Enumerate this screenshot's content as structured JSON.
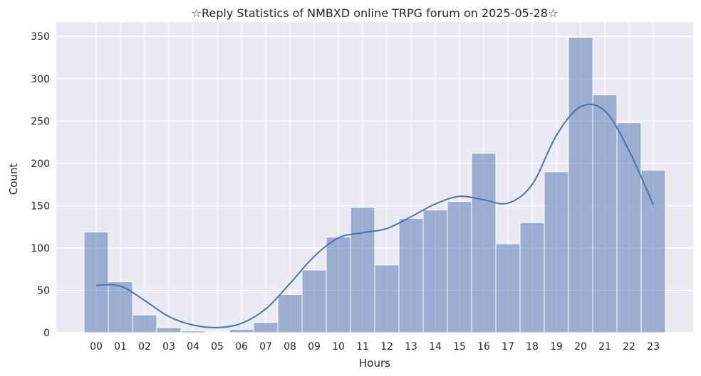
{
  "chart_data": {
    "type": "bar",
    "title": "☆Reply Statistics of NMBXD online TRPG forum on 2025-05-28☆",
    "xlabel": "Hours",
    "ylabel": "Count",
    "categories": [
      "00",
      "01",
      "02",
      "03",
      "04",
      "05",
      "06",
      "07",
      "08",
      "09",
      "10",
      "11",
      "12",
      "13",
      "14",
      "15",
      "16",
      "17",
      "18",
      "19",
      "20",
      "21",
      "22",
      "23"
    ],
    "values": [
      119,
      60,
      21,
      6,
      2,
      1,
      4,
      12,
      45,
      74,
      113,
      148,
      80,
      135,
      145,
      155,
      212,
      105,
      130,
      190,
      349,
      281,
      248,
      192
    ],
    "kde": {
      "x": [
        "00",
        "01",
        "02",
        "03",
        "04",
        "05",
        "06",
        "07",
        "08",
        "09",
        "10",
        "11",
        "12",
        "13",
        "14",
        "15",
        "16",
        "17",
        "18",
        "19",
        "20",
        "21",
        "22",
        "23"
      ],
      "y": [
        56,
        55,
        38,
        19,
        9,
        6,
        11,
        28,
        58,
        90,
        112,
        118,
        123,
        137,
        152,
        161,
        157,
        153,
        175,
        233,
        267,
        262,
        215,
        151
      ]
    },
    "ylim": [
      0,
      367
    ],
    "yticks": [
      0,
      50,
      100,
      150,
      200,
      250,
      300,
      350
    ],
    "grid": true,
    "colors": {
      "background": "#eaeaf2",
      "bar_fill": "#4c72b0",
      "bar_fill_opacity": 0.5,
      "bar_edge": "#ffffff",
      "line": "#4c72b0",
      "grid": "#ffffff"
    }
  }
}
